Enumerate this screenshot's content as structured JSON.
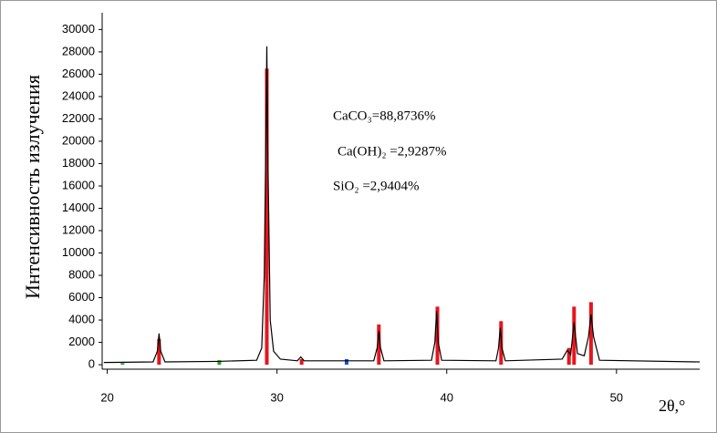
{
  "chart_data": {
    "type": "xrd",
    "y_label": "Интенсивность излучения",
    "x_label": "2θ,°",
    "annotations": [
      "CaCO₃=88,8736%",
      "Ca(OH)₂ =2,9287%",
      "SiO₂ =2,9404%"
    ],
    "xlim": [
      19.7,
      54.9
    ],
    "xticks": [
      20,
      30,
      40,
      50
    ],
    "ylim": [
      -400,
      31500
    ],
    "yticks": [
      0,
      2000,
      4000,
      6000,
      8000,
      10000,
      12000,
      14000,
      16000,
      18000,
      20000,
      22000,
      24000,
      26000,
      28000,
      30000
    ],
    "series": [
      {
        "style": "line",
        "color": "#000000",
        "x": [
          19.8,
          22.7,
          22.95,
          23.05,
          23.15,
          23.4,
          26.5,
          28.8,
          29.1,
          29.25,
          29.35,
          29.4,
          29.45,
          29.6,
          29.8,
          30.2,
          31.2,
          31.4,
          31.6,
          35.7,
          35.9,
          36.0,
          36.1,
          36.3,
          39.1,
          39.3,
          39.4,
          39.5,
          39.7,
          42.9,
          43.05,
          43.15,
          43.25,
          43.45,
          46.8,
          47.1,
          47.3,
          47.5,
          47.7,
          48.1,
          48.35,
          48.5,
          48.65,
          49.0,
          54.9
        ],
        "values": [
          200,
          250,
          1200,
          2800,
          1200,
          250,
          300,
          400,
          1500,
          8000,
          21000,
          28500,
          20000,
          4000,
          1200,
          500,
          350,
          700,
          350,
          350,
          1500,
          3000,
          1500,
          350,
          400,
          2000,
          4800,
          2000,
          400,
          350,
          1500,
          3300,
          1500,
          350,
          500,
          1300,
          900,
          3800,
          1000,
          800,
          2500,
          4500,
          2500,
          400,
          250
        ]
      },
      {
        "style": "stick",
        "color": "#e8141c",
        "x": [
          23.05,
          29.4,
          31.45,
          36.0,
          39.45,
          43.2,
          47.2,
          47.5,
          48.5
        ],
        "values": [
          2300,
          26500,
          500,
          3600,
          5200,
          3900,
          1500,
          5200,
          5600
        ]
      },
      {
        "style": "stick",
        "color": "#22a022",
        "x": [
          20.9,
          26.6
        ],
        "values": [
          150,
          400
        ]
      },
      {
        "style": "stick",
        "color": "#1f4fd0",
        "x": [
          34.1
        ],
        "values": [
          500
        ]
      }
    ]
  }
}
